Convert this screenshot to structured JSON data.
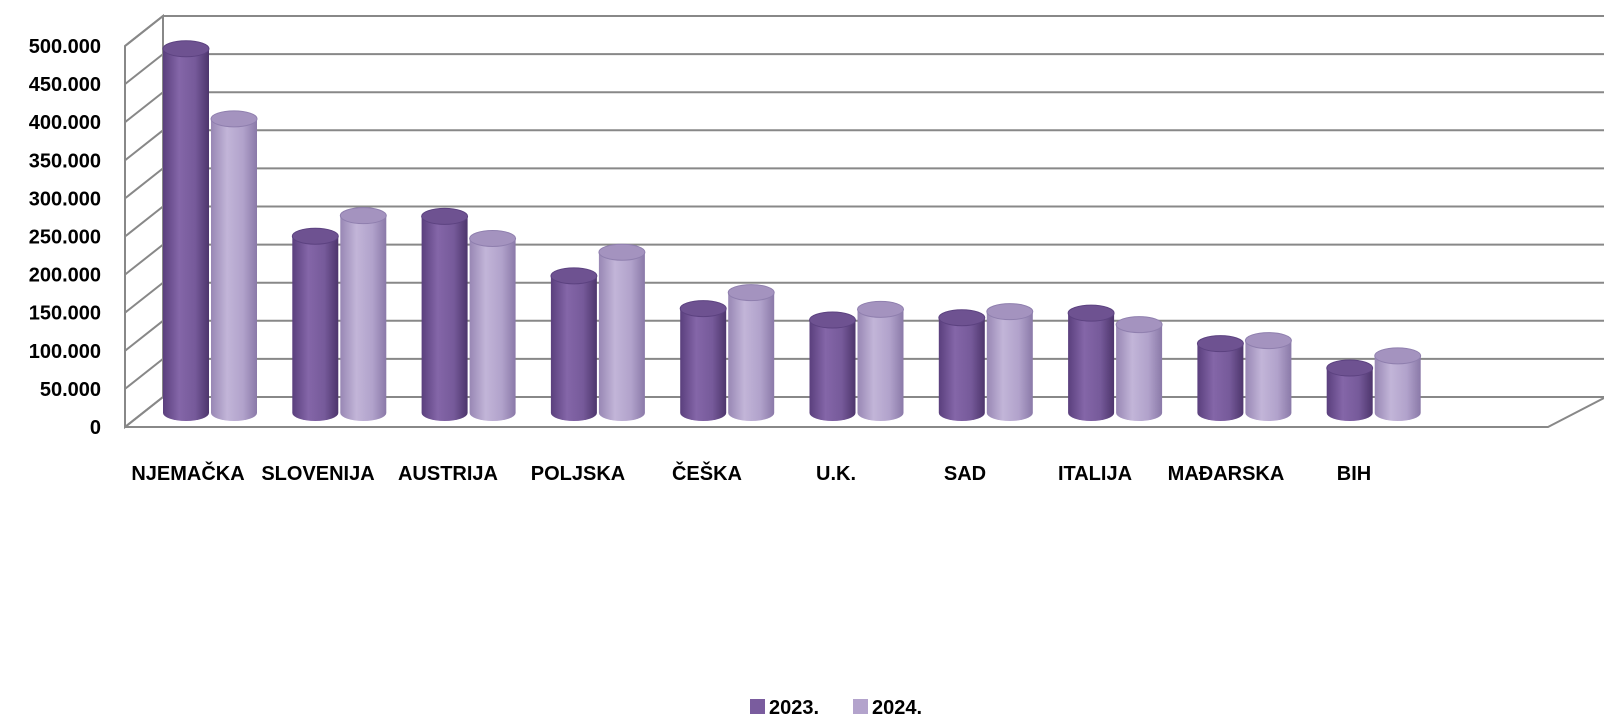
{
  "chart_data": {
    "type": "bar",
    "style": "3d-cylinder",
    "categories": [
      "NJEMAČKA",
      "SLOVENIJA",
      "AUSTRIJA",
      "POLJSKA",
      "ČEŠKA",
      "U.K.",
      "SAD",
      "ITALIJA",
      "MAĐARSKA",
      "BIH"
    ],
    "series": [
      {
        "name": "2023.",
        "color": "#7a5c9e",
        "values": [
          478000,
          232000,
          258000,
          180000,
          137000,
          122000,
          125000,
          131000,
          91000,
          59000
        ]
      },
      {
        "name": "2024.",
        "color": "#b3a3cc",
        "values": [
          386000,
          259000,
          229000,
          211000,
          158000,
          136000,
          133000,
          116000,
          95000,
          75000
        ]
      }
    ],
    "y_ticks": [
      "0",
      "50.000",
      "100.000",
      "150.000",
      "200.000",
      "250.000",
      "300.000",
      "350.000",
      "400.000",
      "450.000",
      "500.000"
    ],
    "ylim": [
      0,
      500000
    ],
    "ystep": 50000,
    "grid": true,
    "legend_position": "bottom-center",
    "title": "",
    "xlabel": "",
    "ylabel": ""
  }
}
